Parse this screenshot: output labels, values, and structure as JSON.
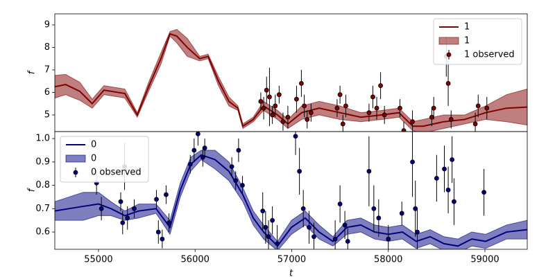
{
  "chart_data": [
    {
      "type": "line",
      "ylabel": "f",
      "xlim": [
        54548,
        59438
      ],
      "ylim": [
        4.26,
        9.49
      ],
      "yticks": [
        5,
        6,
        7,
        8,
        9
      ],
      "legend": "upper right",
      "series": [
        {
          "name": "1",
          "kind": "line",
          "color": "#800000",
          "x": [
            54548,
            54660,
            54806,
            54935,
            55057,
            55273,
            55402,
            55524,
            55646,
            55740,
            55811,
            55919,
            56048,
            56135,
            56242,
            56350,
            56443,
            56494,
            56602,
            56709,
            56853,
            56961,
            57104,
            57284,
            57499,
            57715,
            57930,
            58110,
            58253,
            58361,
            58576,
            58792,
            59007,
            59223,
            59438
          ],
          "values": [
            6.25,
            6.35,
            6.05,
            5.5,
            6.1,
            5.95,
            5.0,
            6.3,
            7.5,
            8.6,
            8.5,
            8.0,
            7.5,
            7.6,
            6.5,
            5.6,
            5.3,
            4.5,
            4.8,
            5.4,
            5.0,
            4.6,
            5.1,
            5.3,
            5.1,
            4.9,
            5.0,
            5.1,
            4.5,
            4.5,
            4.7,
            4.8,
            5.1,
            5.3,
            5.35
          ]
        },
        {
          "name": "1",
          "kind": "band",
          "color": "#800000",
          "x": [
            54548,
            54660,
            54806,
            54935,
            55057,
            55273,
            55402,
            55524,
            55646,
            55740,
            55811,
            55919,
            56048,
            56135,
            56242,
            56350,
            56443,
            56494,
            56602,
            56709,
            56853,
            56961,
            57104,
            57284,
            57499,
            57715,
            57930,
            58110,
            58253,
            58361,
            58576,
            58792,
            59007,
            59223,
            59438
          ],
          "lower": [
            5.75,
            5.9,
            5.65,
            5.3,
            5.9,
            5.75,
            4.9,
            6.1,
            7.25,
            8.5,
            8.2,
            7.6,
            7.4,
            7.5,
            6.3,
            5.4,
            5.2,
            4.4,
            4.7,
            5.2,
            4.8,
            4.4,
            4.8,
            5.0,
            4.8,
            4.7,
            4.8,
            4.9,
            4.3,
            4.2,
            4.4,
            4.6,
            4.8,
            4.7,
            4.55
          ],
          "upper": [
            6.75,
            6.8,
            6.45,
            5.7,
            6.3,
            6.15,
            5.1,
            6.5,
            7.75,
            8.7,
            8.8,
            8.4,
            7.6,
            7.7,
            6.7,
            5.8,
            5.4,
            4.6,
            4.9,
            5.6,
            5.2,
            4.8,
            5.4,
            5.6,
            5.4,
            5.1,
            5.2,
            5.3,
            4.7,
            4.8,
            5.0,
            5.0,
            5.4,
            5.9,
            6.15
          ]
        },
        {
          "name": "1 observed",
          "kind": "errorbar",
          "color": "#800000",
          "x": [
            56680,
            56710,
            56740,
            56770,
            56800,
            56830,
            56870,
            56910,
            56960,
            57050,
            57100,
            57130,
            57160,
            57200,
            57470,
            57500,
            57530,
            57560,
            57800,
            57840,
            57880,
            57920,
            57960,
            58120,
            58160,
            58250,
            58450,
            58470,
            58600,
            58620,
            58650,
            58900,
            58930,
            59020
          ],
          "values": [
            5.6,
            5.3,
            6.1,
            5.8,
            5.0,
            5.4,
            5.9,
            4.7,
            4.9,
            5.7,
            6.4,
            5.4,
            4.8,
            5.1,
            5.3,
            5.9,
            4.6,
            5.4,
            5.1,
            5.8,
            5.3,
            6.3,
            5.0,
            5.3,
            4.3,
            4.7,
            4.9,
            5.3,
            7.6,
            6.4,
            4.8,
            4.6,
            5.4,
            5.3
          ],
          "errors": [
            0.4,
            0.5,
            0.6,
            1.3,
            0.4,
            0.5,
            0.4,
            0.4,
            0.5,
            0.6,
            0.6,
            0.5,
            0.4,
            0.4,
            0.4,
            0.4,
            0.4,
            0.5,
            0.4,
            0.5,
            0.5,
            0.6,
            0.4,
            0.4,
            0.4,
            0.5,
            0.4,
            0.5,
            0.9,
            1.0,
            0.4,
            0.5,
            0.5,
            0.5
          ]
        }
      ]
    },
    {
      "type": "line",
      "ylabel": "f",
      "xlabel": "t",
      "xlim": [
        54548,
        59438
      ],
      "ylim": [
        0.526,
        1.03
      ],
      "xticks": [
        55000,
        56000,
        57000,
        58000,
        59000
      ],
      "yticks": [
        0.6,
        0.7,
        0.8,
        0.9,
        {
          "value": 1,
          "label": "1.0"
        }
      ],
      "legend": "upper left",
      "series": [
        {
          "name": "0",
          "kind": "line",
          "color": "#000080",
          "x": [
            54548,
            54842,
            55000,
            55129,
            55273,
            55416,
            55596,
            55740,
            55847,
            55955,
            56063,
            56206,
            56350,
            56494,
            56602,
            56709,
            56853,
            56997,
            57140,
            57284,
            57427,
            57571,
            57715,
            57858,
            58002,
            58146,
            58289,
            58433,
            58576,
            58720,
            58864,
            59007,
            59223,
            59438
          ],
          "values": [
            0.69,
            0.71,
            0.72,
            0.7,
            0.67,
            0.69,
            0.7,
            0.62,
            0.78,
            0.89,
            0.93,
            0.91,
            0.86,
            0.76,
            0.66,
            0.6,
            0.54,
            0.62,
            0.66,
            0.6,
            0.56,
            0.62,
            0.63,
            0.6,
            0.59,
            0.6,
            0.56,
            0.58,
            0.55,
            0.54,
            0.57,
            0.56,
            0.6,
            0.61
          ]
        },
        {
          "name": "0",
          "kind": "band",
          "color": "#000080",
          "x": [
            54548,
            54842,
            55000,
            55129,
            55273,
            55416,
            55596,
            55740,
            55847,
            55955,
            56063,
            56206,
            56350,
            56494,
            56602,
            56709,
            56853,
            56997,
            57140,
            57284,
            57427,
            57571,
            57715,
            57858,
            58002,
            58146,
            58289,
            58433,
            58576,
            58720,
            58864,
            59007,
            59223,
            59438
          ],
          "lower": [
            0.65,
            0.65,
            0.67,
            0.67,
            0.65,
            0.66,
            0.68,
            0.59,
            0.75,
            0.86,
            0.91,
            0.87,
            0.82,
            0.73,
            0.63,
            0.57,
            0.52,
            0.59,
            0.63,
            0.57,
            0.54,
            0.59,
            0.6,
            0.57,
            0.56,
            0.57,
            0.53,
            0.55,
            0.52,
            0.51,
            0.54,
            0.53,
            0.57,
            0.57
          ],
          "upper": [
            0.73,
            0.77,
            0.77,
            0.73,
            0.69,
            0.72,
            0.72,
            0.65,
            0.81,
            0.92,
            0.95,
            0.95,
            0.9,
            0.79,
            0.69,
            0.63,
            0.56,
            0.65,
            0.69,
            0.63,
            0.58,
            0.65,
            0.66,
            0.63,
            0.62,
            0.63,
            0.59,
            0.61,
            0.58,
            0.57,
            0.6,
            0.59,
            0.63,
            0.65
          ]
        },
        {
          "name": "0 observed",
          "kind": "errorbar",
          "color": "#000080",
          "x": [
            54980,
            55030,
            55230,
            55250,
            55270,
            55300,
            55370,
            55600,
            55620,
            55660,
            55700,
            55730,
            55950,
            55990,
            56030,
            56080,
            56100,
            56380,
            56420,
            56450,
            56490,
            56700,
            56730,
            56760,
            56800,
            56850,
            57040,
            57080,
            57120,
            57180,
            57230,
            57450,
            57500,
            57550,
            57580,
            57800,
            57850,
            57900,
            58000,
            58140,
            58250,
            58280,
            58300,
            58500,
            58580,
            58620,
            58660,
            58680,
            58990
          ],
          "values": [
            0.81,
            0.7,
            0.73,
            0.64,
            0.88,
            0.66,
            0.7,
            0.74,
            0.6,
            0.57,
            0.76,
            0.64,
            0.89,
            0.95,
            1.02,
            0.92,
            0.96,
            0.88,
            0.82,
            0.95,
            0.8,
            0.69,
            0.62,
            0.58,
            0.65,
            0.55,
            1.01,
            0.86,
            0.7,
            0.62,
            0.58,
            0.57,
            0.72,
            0.63,
            0.56,
            0.86,
            0.7,
            0.66,
            0.57,
            0.68,
            0.9,
            0.7,
            0.6,
            0.83,
            0.87,
            0.78,
            0.91,
            0.73,
            0.77
          ],
          "errors": [
            0.05,
            0.05,
            0.04,
            0.05,
            0.1,
            0.05,
            0.04,
            0.04,
            0.05,
            0.04,
            0.04,
            0.04,
            0.04,
            0.05,
            0.05,
            0.04,
            0.04,
            0.04,
            0.04,
            0.05,
            0.04,
            0.08,
            0.07,
            0.07,
            0.06,
            0.08,
            0.08,
            0.1,
            0.08,
            0.07,
            0.06,
            0.08,
            0.08,
            0.06,
            0.06,
            0.15,
            0.1,
            0.08,
            0.06,
            0.05,
            0.15,
            0.12,
            0.1,
            0.1,
            0.1,
            0.1,
            0.1,
            0.1,
            0.1
          ]
        }
      ]
    }
  ]
}
